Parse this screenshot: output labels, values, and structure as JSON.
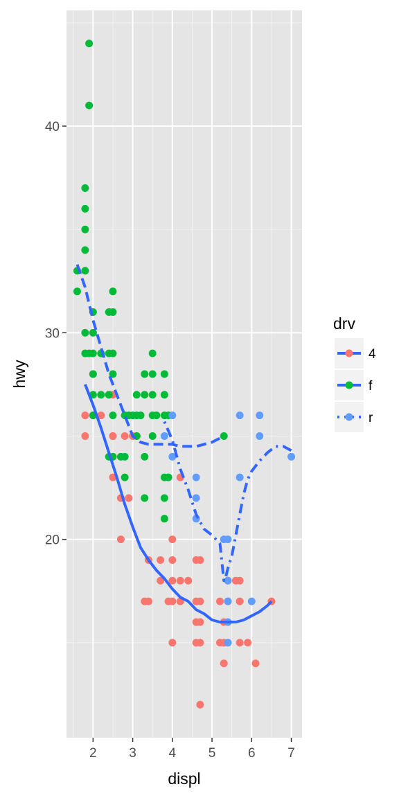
{
  "chart_data": {
    "type": "scatter",
    "xlabel": "displ",
    "ylabel": "hwy",
    "xlim": [
      1.33,
      7.27
    ],
    "ylim": [
      10.4,
      45.6
    ],
    "x_ticks": [
      2,
      3,
      4,
      5,
      6,
      7
    ],
    "y_ticks": [
      20,
      30,
      40
    ],
    "grid": true,
    "background": "#E5E5E5",
    "legend": {
      "title": "drv",
      "position": "right",
      "entries": [
        {
          "label": "4",
          "color": "#F8766D",
          "linetype": "solid"
        },
        {
          "label": "f",
          "color": "#00BA38",
          "linetype": "dashed"
        },
        {
          "label": "r",
          "color": "#619CFF",
          "linetype": "dotdash"
        }
      ]
    },
    "smooth_color": "#3366FF",
    "series": [
      {
        "name": "4",
        "color": "#F8766D",
        "points": [
          [
            1.8,
            26
          ],
          [
            1.8,
            25
          ],
          [
            2.0,
            28
          ],
          [
            2.0,
            26
          ],
          [
            2.2,
            26
          ],
          [
            2.5,
            27
          ],
          [
            2.5,
            25
          ],
          [
            2.5,
            24
          ],
          [
            2.4,
            27
          ],
          [
            2.5,
            23
          ],
          [
            2.5,
            25
          ],
          [
            2.7,
            20
          ],
          [
            2.7,
            22
          ],
          [
            2.8,
            25
          ],
          [
            2.9,
            22
          ],
          [
            3.0,
            25
          ],
          [
            3.1,
            25
          ],
          [
            3.3,
            17
          ],
          [
            3.4,
            17
          ],
          [
            3.4,
            19
          ],
          [
            3.7,
            19
          ],
          [
            3.7,
            18
          ],
          [
            3.9,
            17
          ],
          [
            4.0,
            17
          ],
          [
            4.0,
            15
          ],
          [
            4.0,
            20
          ],
          [
            4.0,
            19
          ],
          [
            4.0,
            18
          ],
          [
            4.2,
            23
          ],
          [
            4.2,
            17
          ],
          [
            4.2,
            18
          ],
          [
            4.4,
            18
          ],
          [
            4.6,
            19
          ],
          [
            4.6,
            17
          ],
          [
            4.6,
            16
          ],
          [
            4.6,
            15
          ],
          [
            4.7,
            19
          ],
          [
            4.7,
            17
          ],
          [
            4.7,
            15
          ],
          [
            4.7,
            16
          ],
          [
            4.7,
            12
          ],
          [
            5.2,
            17
          ],
          [
            5.3,
            16
          ],
          [
            5.3,
            15
          ],
          [
            5.3,
            14
          ],
          [
            5.4,
            18
          ],
          [
            5.4,
            17
          ],
          [
            5.4,
            15
          ],
          [
            5.6,
            18
          ],
          [
            5.7,
            18
          ],
          [
            5.7,
            17
          ],
          [
            5.7,
            15
          ],
          [
            5.9,
            15
          ],
          [
            6.1,
            14
          ],
          [
            6.5,
            17
          ],
          [
            5.2,
            15
          ]
        ]
      },
      {
        "name": "f",
        "color": "#00BA38",
        "points": [
          [
            1.6,
            33
          ],
          [
            1.6,
            32
          ],
          [
            1.8,
            29
          ],
          [
            1.8,
            30
          ],
          [
            1.8,
            33
          ],
          [
            1.8,
            35
          ],
          [
            1.8,
            37
          ],
          [
            1.8,
            36
          ],
          [
            1.8,
            34
          ],
          [
            1.9,
            44
          ],
          [
            1.9,
            41
          ],
          [
            1.9,
            29
          ],
          [
            2.0,
            31
          ],
          [
            2.0,
            30
          ],
          [
            2.0,
            29
          ],
          [
            2.0,
            28
          ],
          [
            2.0,
            27
          ],
          [
            2.0,
            26
          ],
          [
            2.2,
            29
          ],
          [
            2.2,
            27
          ],
          [
            2.4,
            31
          ],
          [
            2.4,
            29
          ],
          [
            2.4,
            27
          ],
          [
            2.4,
            24
          ],
          [
            2.5,
            32
          ],
          [
            2.5,
            31
          ],
          [
            2.5,
            29
          ],
          [
            2.5,
            28
          ],
          [
            2.5,
            26
          ],
          [
            2.5,
            24
          ],
          [
            2.7,
            24
          ],
          [
            2.8,
            26
          ],
          [
            2.8,
            24
          ],
          [
            2.8,
            23
          ],
          [
            2.9,
            26
          ],
          [
            3.0,
            26
          ],
          [
            3.1,
            26
          ],
          [
            3.1,
            25
          ],
          [
            3.1,
            27
          ],
          [
            3.2,
            26
          ],
          [
            3.3,
            28
          ],
          [
            3.3,
            27
          ],
          [
            3.3,
            24
          ],
          [
            3.3,
            22
          ],
          [
            3.5,
            28
          ],
          [
            3.5,
            27
          ],
          [
            3.5,
            26
          ],
          [
            3.5,
            25
          ],
          [
            3.5,
            29
          ],
          [
            3.6,
            26
          ],
          [
            3.8,
            28
          ],
          [
            3.8,
            27
          ],
          [
            3.8,
            26
          ],
          [
            3.8,
            23
          ],
          [
            3.8,
            22
          ],
          [
            3.8,
            21
          ],
          [
            3.9,
            26
          ],
          [
            3.9,
            23
          ],
          [
            5.3,
            25
          ]
        ]
      },
      {
        "name": "r",
        "color": "#619CFF",
        "points": [
          [
            3.8,
            25
          ],
          [
            4.0,
            26
          ],
          [
            4.0,
            24
          ],
          [
            4.6,
            23
          ],
          [
            4.6,
            22
          ],
          [
            4.6,
            21
          ],
          [
            5.3,
            20
          ],
          [
            5.4,
            20
          ],
          [
            5.4,
            18
          ],
          [
            5.4,
            17
          ],
          [
            5.4,
            16
          ],
          [
            5.4,
            15
          ],
          [
            5.7,
            26
          ],
          [
            5.7,
            23
          ],
          [
            6.0,
            17
          ],
          [
            6.2,
            26
          ],
          [
            6.2,
            25
          ],
          [
            7.0,
            24
          ]
        ]
      }
    ],
    "smooth_fits": [
      {
        "name": "4",
        "linetype": "solid",
        "points": [
          [
            1.8,
            27.5
          ],
          [
            2.0,
            26.5
          ],
          [
            2.2,
            25.4
          ],
          [
            2.4,
            24.2
          ],
          [
            2.6,
            23.0
          ],
          [
            2.8,
            21.7
          ],
          [
            3.0,
            20.6
          ],
          [
            3.2,
            19.6
          ],
          [
            3.4,
            19.0
          ],
          [
            3.6,
            18.5
          ],
          [
            3.8,
            18.1
          ],
          [
            4.0,
            17.6
          ],
          [
            4.2,
            17.2
          ],
          [
            4.4,
            17.0
          ],
          [
            4.6,
            16.6
          ],
          [
            4.8,
            16.4
          ],
          [
            5.0,
            16.1
          ],
          [
            5.2,
            16.0
          ],
          [
            5.4,
            16.0
          ],
          [
            5.6,
            16.0
          ],
          [
            5.8,
            16.1
          ],
          [
            6.0,
            16.3
          ],
          [
            6.2,
            16.5
          ],
          [
            6.4,
            16.8
          ],
          [
            6.5,
            17.0
          ]
        ]
      },
      {
        "name": "f",
        "linetype": "dashed",
        "points": [
          [
            1.6,
            33.3
          ],
          [
            1.8,
            32.2
          ],
          [
            2.0,
            30.6
          ],
          [
            2.2,
            29.3
          ],
          [
            2.4,
            28.0
          ],
          [
            2.6,
            27.0
          ],
          [
            2.8,
            26.0
          ],
          [
            3.0,
            25.0
          ],
          [
            3.2,
            24.7
          ],
          [
            3.4,
            24.6
          ],
          [
            3.6,
            24.6
          ],
          [
            3.8,
            24.6
          ],
          [
            4.0,
            24.6
          ],
          [
            4.2,
            24.5
          ],
          [
            4.4,
            24.5
          ],
          [
            4.6,
            24.5
          ],
          [
            4.8,
            24.6
          ],
          [
            5.0,
            24.7
          ],
          [
            5.2,
            24.9
          ],
          [
            5.3,
            25.0
          ]
        ]
      },
      {
        "name": "r",
        "linetype": "dotdash",
        "points": [
          [
            3.8,
            25.7
          ],
          [
            4.0,
            24.8
          ],
          [
            4.2,
            23.4
          ],
          [
            4.4,
            22.4
          ],
          [
            4.6,
            21.2
          ],
          [
            4.8,
            20.5
          ],
          [
            5.0,
            20.2
          ],
          [
            5.1,
            20.0
          ],
          [
            5.2,
            19.8
          ],
          [
            5.3,
            18.0
          ],
          [
            5.35,
            18.2
          ],
          [
            5.4,
            18.6
          ],
          [
            5.5,
            19.2
          ],
          [
            5.6,
            20.2
          ],
          [
            5.7,
            21.2
          ],
          [
            5.8,
            22.2
          ],
          [
            5.9,
            22.9
          ],
          [
            6.0,
            23.3
          ],
          [
            6.2,
            23.8
          ],
          [
            6.4,
            24.2
          ],
          [
            6.6,
            24.5
          ],
          [
            6.8,
            24.5
          ],
          [
            7.0,
            24.3
          ]
        ]
      }
    ]
  }
}
